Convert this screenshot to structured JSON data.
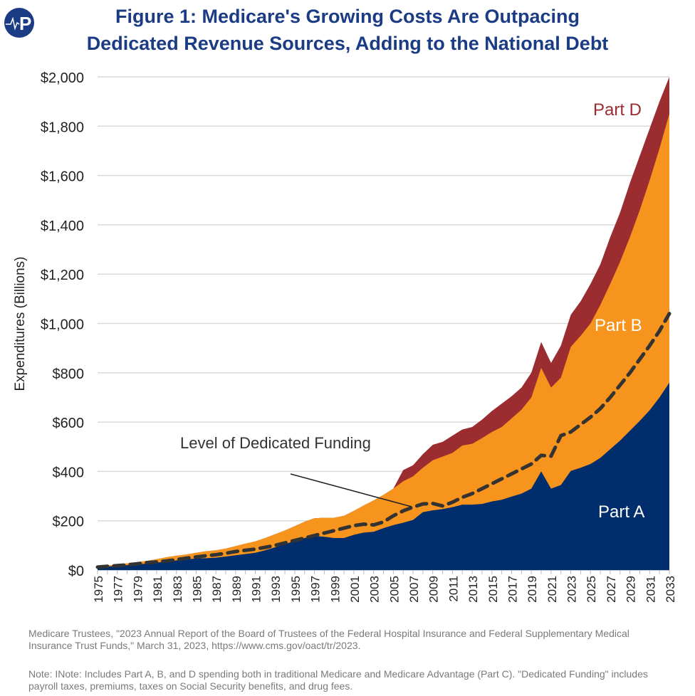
{
  "logo_text": "P",
  "title_line1": "Figure 1: Medicare's Growing Costs Are Outpacing",
  "title_line2": "Dedicated Revenue Sources, Adding to the National Debt",
  "source": "Medicare Trustees, \"2023 Annual Report of the Board of Trustees of the Federal Hospital Insurance and Federal Supplementary Medical Insurance Trust Funds,\" March 31, 2023, https://www.cms.gov/oact/tr/2023.",
  "note": "Note: INote: Includes Part A, B, and D spending both in traditional Medicare and Medicare Advantage (Part C). \"Dedicated Funding\" includes payroll taxes, premiums, taxes on Social Security benefits, and drug fees.",
  "chart_data": {
    "type": "area",
    "ylabel": "Expenditures (Billions)",
    "ylim": [
      0,
      2000
    ],
    "yticks": [
      0,
      200,
      400,
      600,
      800,
      1000,
      1200,
      1400,
      1600,
      1800,
      2000
    ],
    "ytick_labels": [
      "$0",
      "$200",
      "$400",
      "$600",
      "$800",
      "$1,000",
      "$1,200",
      "$1,400",
      "$1,600",
      "$1,800",
      "$2,000"
    ],
    "x_start": 1975,
    "x_end": 2033,
    "xtick_labels": [
      "1975",
      "1977",
      "1979",
      "1981",
      "1983",
      "1985",
      "1987",
      "1989",
      "1991",
      "1993",
      "1995",
      "1997",
      "1999",
      "2001",
      "2003",
      "2005",
      "2007",
      "2009",
      "2011",
      "2013",
      "2015",
      "2017",
      "2019",
      "2021",
      "2023",
      "2025",
      "2027",
      "2029",
      "2031",
      "2033"
    ],
    "grid": true,
    "colors": {
      "part_a": "#002d6b",
      "part_b": "#f7941d",
      "part_d": "#9b2d30",
      "funding": "#333333"
    },
    "labels": {
      "part_a": "Part A",
      "part_b": "Part B",
      "part_d": "Part D",
      "funding": "Level of Dedicated Funding"
    },
    "series_cumulative": {
      "part_a": [
        12,
        14,
        17,
        20,
        23,
        26,
        30,
        35,
        39,
        43,
        47,
        48,
        50,
        55,
        60,
        65,
        70,
        80,
        92,
        105,
        118,
        130,
        138,
        135,
        130,
        130,
        143,
        152,
        155,
        170,
        182,
        192,
        203,
        235,
        242,
        247,
        255,
        265,
        265,
        268,
        278,
        285,
        298,
        310,
        330,
        400,
        330,
        345,
        402,
        415,
        430,
        455,
        490,
        525,
        565,
        605,
        648,
        700,
        760
      ],
      "part_a_plus_b": [
        15,
        18,
        22,
        27,
        32,
        37,
        44,
        52,
        58,
        63,
        70,
        76,
        80,
        87,
        97,
        107,
        116,
        130,
        145,
        160,
        178,
        196,
        210,
        212,
        212,
        220,
        240,
        262,
        282,
        305,
        330,
        360,
        380,
        415,
        445,
        460,
        475,
        505,
        512,
        535,
        560,
        580,
        615,
        650,
        700,
        820,
        740,
        780,
        905,
        950,
        1000,
        1075,
        1160,
        1250,
        1350,
        1460,
        1580,
        1710,
        1850
      ],
      "total": [
        15,
        18,
        22,
        27,
        32,
        37,
        44,
        52,
        58,
        63,
        70,
        76,
        80,
        87,
        97,
        107,
        116,
        130,
        145,
        160,
        178,
        196,
        210,
        212,
        212,
        220,
        240,
        262,
        282,
        305,
        330,
        405,
        425,
        470,
        508,
        520,
        545,
        570,
        580,
        610,
        645,
        675,
        705,
        740,
        800,
        925,
        840,
        910,
        1035,
        1090,
        1160,
        1240,
        1350,
        1450,
        1570,
        1680,
        1790,
        1900,
        2000
      ]
    },
    "dedicated_funding": [
      12,
      15,
      18,
      21,
      25,
      30,
      33,
      37,
      42,
      48,
      53,
      58,
      62,
      68,
      75,
      80,
      85,
      92,
      100,
      110,
      120,
      130,
      140,
      150,
      160,
      170,
      180,
      186,
      183,
      195,
      220,
      240,
      255,
      268,
      270,
      260,
      275,
      295,
      310,
      330,
      350,
      370,
      390,
      410,
      430,
      465,
      462,
      545,
      560,
      590,
      620,
      655,
      700,
      750,
      800,
      855,
      910,
      970,
      1040
    ]
  }
}
